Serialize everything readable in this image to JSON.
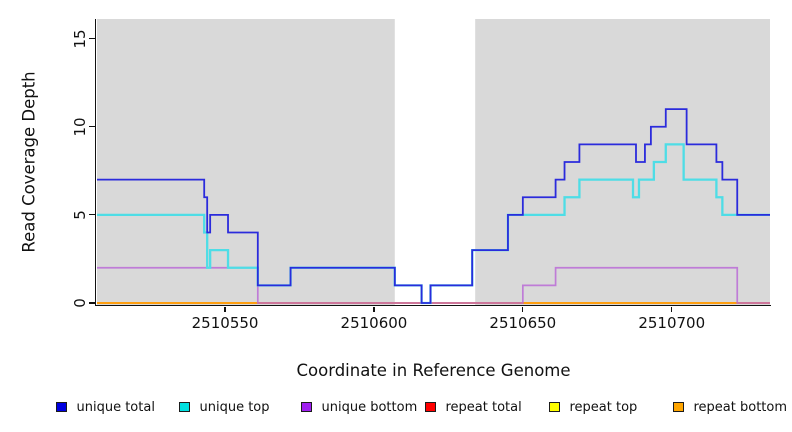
{
  "chart_data": {
    "type": "line",
    "subtype": "step-coverage-plot",
    "title": "",
    "xlabel": "Coordinate in Reference Genome",
    "ylabel": "Read Coverage Depth",
    "xlim": [
      2510507,
      2510733
    ],
    "ylim": [
      0,
      16
    ],
    "x_ticks": [
      2510550,
      2510600,
      2510650,
      2510700
    ],
    "y_ticks": [
      0,
      5,
      10,
      15
    ],
    "grid": false,
    "plot_bg_color": "#d9d9d9",
    "axis_color": "#111111",
    "highlight_region": {
      "x0": 2510607,
      "x1": 2510634,
      "color": "#ffffff",
      "meaning": "white band (gap) in shaded background"
    },
    "series": [
      {
        "name": "repeat total",
        "color": "#ee0000",
        "width": 1.6,
        "opacity": 1,
        "steps": [
          [
            2510507,
            0
          ]
        ],
        "xend": 2510733
      },
      {
        "name": "repeat top",
        "color": "#ffee00",
        "width": 1.6,
        "opacity": 1,
        "steps": [
          [
            2510507,
            0
          ]
        ],
        "xend": 2510733
      },
      {
        "name": "repeat bottom",
        "color": "#ff9d0a",
        "width": 1.7,
        "opacity": 1,
        "steps": [
          [
            2510507,
            0
          ]
        ],
        "xend": 2510733
      },
      {
        "name": "unique bottom",
        "color": "#b864d6",
        "width": 1.7,
        "opacity": 0.8,
        "steps": [
          [
            2510507,
            2
          ],
          [
            2510561,
            0
          ],
          [
            2510650,
            1
          ],
          [
            2510661,
            2
          ],
          [
            2510722,
            0
          ]
        ],
        "xend": 2510733
      },
      {
        "name": "unique top",
        "color": "#4edde6",
        "width": 2.3,
        "opacity": 1,
        "steps": [
          [
            2510507,
            5
          ],
          [
            2510543,
            4
          ],
          [
            2510544,
            2
          ],
          [
            2510545,
            3
          ],
          [
            2510551,
            2
          ],
          [
            2510561,
            1
          ],
          [
            2510572,
            2
          ],
          [
            2510607,
            1
          ],
          [
            2510616,
            0
          ],
          [
            2510619,
            1
          ],
          [
            2510633,
            3
          ],
          [
            2510645,
            5
          ],
          [
            2510664,
            6
          ],
          [
            2510669,
            7
          ],
          [
            2510687,
            6
          ],
          [
            2510689,
            7
          ],
          [
            2510694,
            8
          ],
          [
            2510698,
            9
          ],
          [
            2510704,
            7
          ],
          [
            2510715,
            6
          ],
          [
            2510717,
            5
          ]
        ],
        "xend": 2510733
      },
      {
        "name": "unique total",
        "color": "#2b2bdc",
        "width": 1.8,
        "opacity": 1,
        "steps": [
          [
            2510507,
            7
          ],
          [
            2510543,
            6
          ],
          [
            2510544,
            4
          ],
          [
            2510545,
            5
          ],
          [
            2510551,
            4
          ],
          [
            2510561,
            1
          ],
          [
            2510572,
            2
          ],
          [
            2510607,
            1
          ],
          [
            2510616,
            0
          ],
          [
            2510619,
            1
          ],
          [
            2510633,
            3
          ],
          [
            2510645,
            5
          ],
          [
            2510650,
            6
          ],
          [
            2510661,
            7
          ],
          [
            2510664,
            8
          ],
          [
            2510669,
            9
          ],
          [
            2510688,
            8
          ],
          [
            2510691,
            9
          ],
          [
            2510693,
            10
          ],
          [
            2510698,
            11
          ],
          [
            2510705,
            9
          ],
          [
            2510715,
            8
          ],
          [
            2510717,
            7
          ],
          [
            2510722,
            5
          ]
        ],
        "xend": 2510733
      }
    ],
    "legend": {
      "position": "bottom",
      "items": [
        {
          "label": "unique total",
          "fill": "#0000e0"
        },
        {
          "label": "unique top",
          "fill": "#00e0e0"
        },
        {
          "label": "unique bottom",
          "fill": "#a020f0"
        },
        {
          "label": "repeat total",
          "fill": "#ff0000"
        },
        {
          "label": "repeat top",
          "fill": "#ffff00"
        },
        {
          "label": "repeat bottom",
          "fill": "#ffa500"
        }
      ]
    }
  }
}
